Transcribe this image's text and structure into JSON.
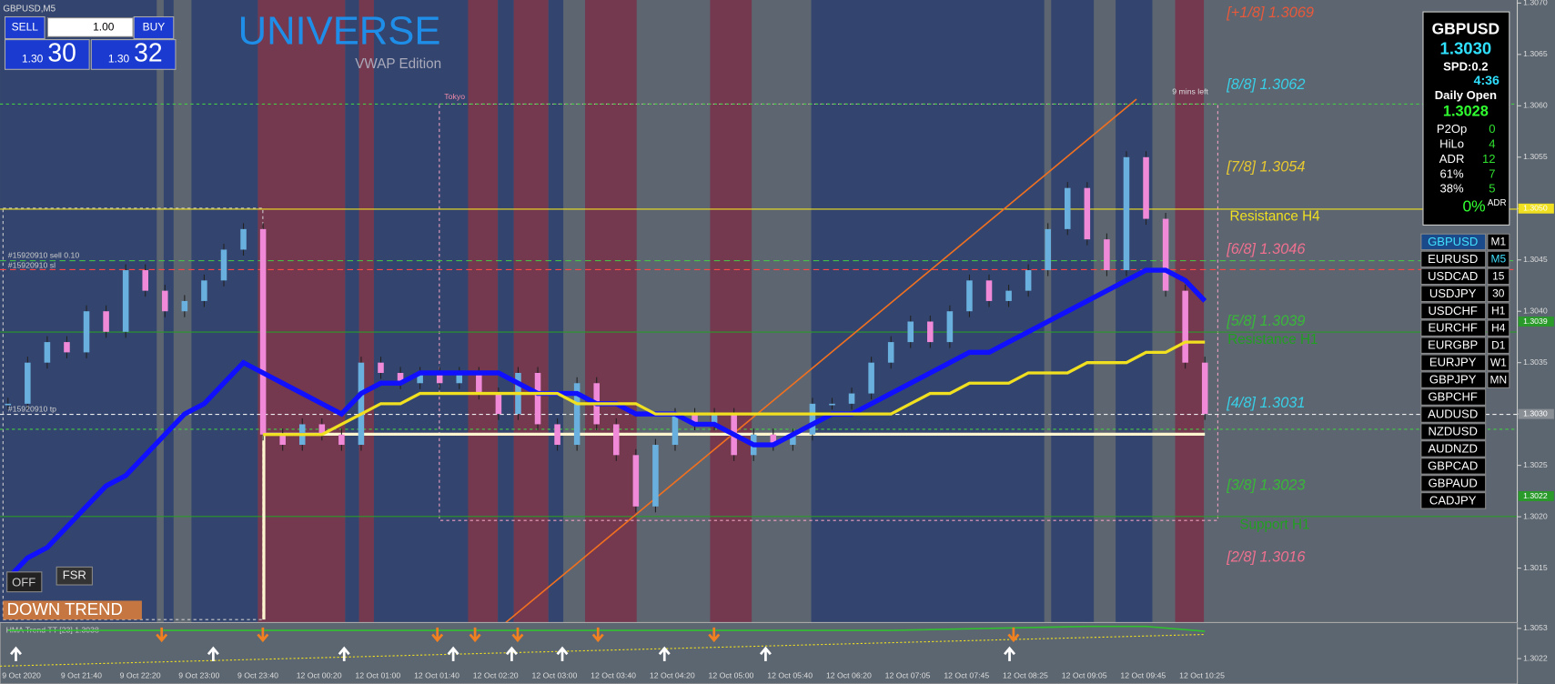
{
  "window_title": "GBPUSD,M5",
  "trade_panel": {
    "sell": "SELL",
    "buy": "BUY",
    "lots": "1.00",
    "bid_big": "1.30",
    "bid": "30",
    "ask_big": "1.30",
    "ask": "32"
  },
  "logo": {
    "title": "UNIVERSE",
    "subtitle": "VWAP Edition"
  },
  "labels": {
    "tokyo": "Tokyo",
    "timer": "9 mins left",
    "sell_order": "#15920910 sell 0.10",
    "sl": "#15920910 sl",
    "tp": "#15920910 tp",
    "resistance_h4": "Resistance H4",
    "resistance_h1": "Resistance H1",
    "support_h1": "Support H1",
    "off": "OFF",
    "fsr": "FSR",
    "trend": "DOWN TREND"
  },
  "info_panel": {
    "symbol": "GBPUSD",
    "price": "1.3030",
    "spread": "SPD:0.2",
    "time": "4:36",
    "daily_open_label": "Daily Open",
    "daily_open": "1.3028",
    "rows": [
      [
        "P2Op",
        "0"
      ],
      [
        "HiLo",
        "4"
      ],
      [
        "ADR",
        "12"
      ],
      [
        "61%",
        "7"
      ],
      [
        "38%",
        "5"
      ]
    ],
    "percent": "0%",
    "percent_label": "ADR"
  },
  "symbols": [
    "GBPUSD",
    "EURUSD",
    "USDCAD",
    "USDJPY",
    "USDCHF",
    "EURCHF",
    "EURGBP",
    "EURJPY",
    "GBPJPY",
    "GBPCHF",
    "AUDUSD",
    "NZDUSD",
    "AUDNZD",
    "GBPCAD",
    "GBPAUD",
    "CADJPY"
  ],
  "timeframes": [
    "M1",
    "M5",
    "15",
    "30",
    "H1",
    "H4",
    "D1",
    "W1",
    "MN"
  ],
  "chart_data": {
    "type": "candlestick",
    "categories": [
      "9 Oct 2020",
      null,
      null,
      "9 Oct 21:40",
      null,
      null,
      "9 Oct 22:20",
      null,
      null,
      "9 Oct 23:00",
      null,
      null,
      "9 Oct 23:40",
      null,
      null,
      "12 Oct 00:20",
      null,
      null,
      "12 Oct 01:00",
      null,
      null,
      "12 Oct 01:40",
      null,
      null,
      "12 Oct 02:20",
      null,
      null,
      "12 Oct 03:00",
      null,
      null,
      "12 Oct 03:40",
      null,
      null,
      "12 Oct 04:20",
      null,
      null,
      "12 Oct 05:00",
      null,
      null,
      "12 Oct 05:40",
      null,
      null,
      "12 Oct 06:20",
      null,
      null,
      "12 Oct 07:05",
      null,
      null,
      "12 Oct 07:45",
      null,
      null,
      "12 Oct 08:25",
      null,
      null,
      "12 Oct 09:05",
      null,
      null,
      "12 Oct 09:45",
      null,
      null,
      "12 Oct 10:25",
      null
    ],
    "close": [
      1.3031,
      1.3035,
      1.3037,
      1.3036,
      1.304,
      1.3038,
      1.3044,
      1.3042,
      1.304,
      1.3041,
      1.3043,
      1.3046,
      1.3048,
      1.3028,
      1.3027,
      1.3029,
      1.3028,
      1.3027,
      1.3035,
      1.3034,
      1.3033,
      1.3034,
      1.3033,
      1.3034,
      1.3032,
      1.303,
      1.3034,
      1.3029,
      1.3027,
      1.3033,
      1.3029,
      1.3026,
      1.3021,
      1.3027,
      1.303,
      1.3029,
      1.303,
      1.3026,
      1.3028,
      1.3027,
      1.3028,
      1.3031,
      1.3031,
      1.3032,
      1.3035,
      1.3037,
      1.3039,
      1.3037,
      1.304,
      1.3043,
      1.3041,
      1.3042,
      1.3044,
      1.3048,
      1.3052,
      1.3047,
      1.3044,
      1.3055,
      1.3049,
      1.3042,
      1.3035,
      1.303
    ],
    "up_color": "#6ab0de",
    "down_color": "#f08ad8",
    "series": [
      {
        "color": "#1010ff",
        "values": [
          1.3014,
          1.3016,
          1.3017,
          1.3019,
          1.3021,
          1.3023,
          1.3024,
          1.3026,
          1.3028,
          1.303,
          1.3031,
          1.3033,
          1.3035,
          1.3034,
          1.3033,
          1.3032,
          1.3031,
          1.303,
          1.3032,
          1.3033,
          1.3033,
          1.3034,
          1.3034,
          1.3034,
          1.3034,
          1.3034,
          1.3033,
          1.3032,
          1.3032,
          1.3032,
          1.3031,
          1.3031,
          1.303,
          1.303,
          1.303,
          1.3029,
          1.3029,
          1.3028,
          1.3027,
          1.3027,
          1.3028,
          1.3029,
          1.303,
          1.303,
          1.3031,
          1.3032,
          1.3033,
          1.3034,
          1.3035,
          1.3036,
          1.3036,
          1.3037,
          1.3038,
          1.3039,
          1.304,
          1.3041,
          1.3042,
          1.3043,
          1.3044,
          1.3044,
          1.3043,
          1.3041
        ]
      },
      {
        "color": "#f0e020",
        "values": [
          null,
          null,
          null,
          null,
          null,
          null,
          null,
          null,
          null,
          null,
          null,
          null,
          null,
          1.3028,
          1.3028,
          1.3028,
          1.3028,
          1.3029,
          1.303,
          1.3031,
          1.3031,
          1.3032,
          1.3032,
          1.3032,
          1.3032,
          1.3032,
          1.3032,
          1.3032,
          1.3032,
          1.3031,
          1.3031,
          1.3031,
          1.3031,
          1.303,
          1.303,
          1.303,
          1.303,
          1.303,
          1.303,
          1.303,
          1.303,
          1.303,
          1.303,
          1.303,
          1.303,
          1.303,
          1.3031,
          1.3032,
          1.3032,
          1.3033,
          1.3033,
          1.3033,
          1.3034,
          1.3034,
          1.3034,
          1.3035,
          1.3035,
          1.3035,
          1.3036,
          1.3036,
          1.3037,
          1.3037
        ]
      }
    ],
    "ylim": [
      1.30097,
      1.30703
    ],
    "yticks": [
      {
        "value": 1.307,
        "label": "1.3070"
      },
      1.3065,
      {
        "value": 1.306,
        "label": "1.3060"
      },
      1.3055,
      {
        "value": 1.305,
        "label": "1.3050"
      },
      1.3045,
      {
        "value": 1.304,
        "label": "1.3040"
      },
      1.3035,
      {
        "value": 1.303,
        "label": "1.3030"
      },
      1.3025,
      {
        "value": 1.302,
        "label": "1.3020"
      },
      1.3015
    ],
    "price_markers": [
      {
        "value": 1.305,
        "label": "1.3050",
        "color": "#f0e020"
      },
      {
        "value": 1.3039,
        "color": "#2a9a2a"
      },
      {
        "value": 1.303,
        "label": "1.3030",
        "color": "#8a8f96"
      },
      {
        "value": 1.3022,
        "color": "#2a9a2a"
      }
    ],
    "levels": [
      {
        "value": 1.3069,
        "label": "[+1/8]  1.3069",
        "color": "#e8583a"
      },
      {
        "value": 1.3062,
        "label": "[8/8]  1.3062",
        "color": "#38d0e8"
      },
      {
        "value": 1.3054,
        "label": "[7/8]  1.3054",
        "color": "#e8c830"
      },
      {
        "value": 1.3046,
        "label": "[6/8]  1.3046",
        "color": "#f07090"
      },
      {
        "value": 1.3039,
        "label": "[5/8]  1.3039",
        "color": "#38b838"
      },
      {
        "value": 1.3031,
        "label": "[4/8]  1.3031",
        "color": "#38d0e8"
      },
      {
        "value": 1.3023,
        "label": "[3/8]  1.3023",
        "color": "#38b838"
      },
      {
        "value": 1.3016,
        "label": "[2/8]  1.3016",
        "color": "#f07090"
      }
    ]
  },
  "indicator": {
    "name": "HMA Trend TT [23] 1.3038",
    "x": [
      0,
      13,
      17,
      45,
      55,
      57,
      58,
      61
    ],
    "values": [
      1.3051,
      1.3051,
      1.3051,
      1.3051,
      1.3055,
      1.3055,
      1.3055,
      1.305
    ],
    "color": "#30c030",
    "ylim": [
      1.2996,
      1.3059
    ],
    "yticks": [
      1.3053,
      1.3022
    ]
  }
}
